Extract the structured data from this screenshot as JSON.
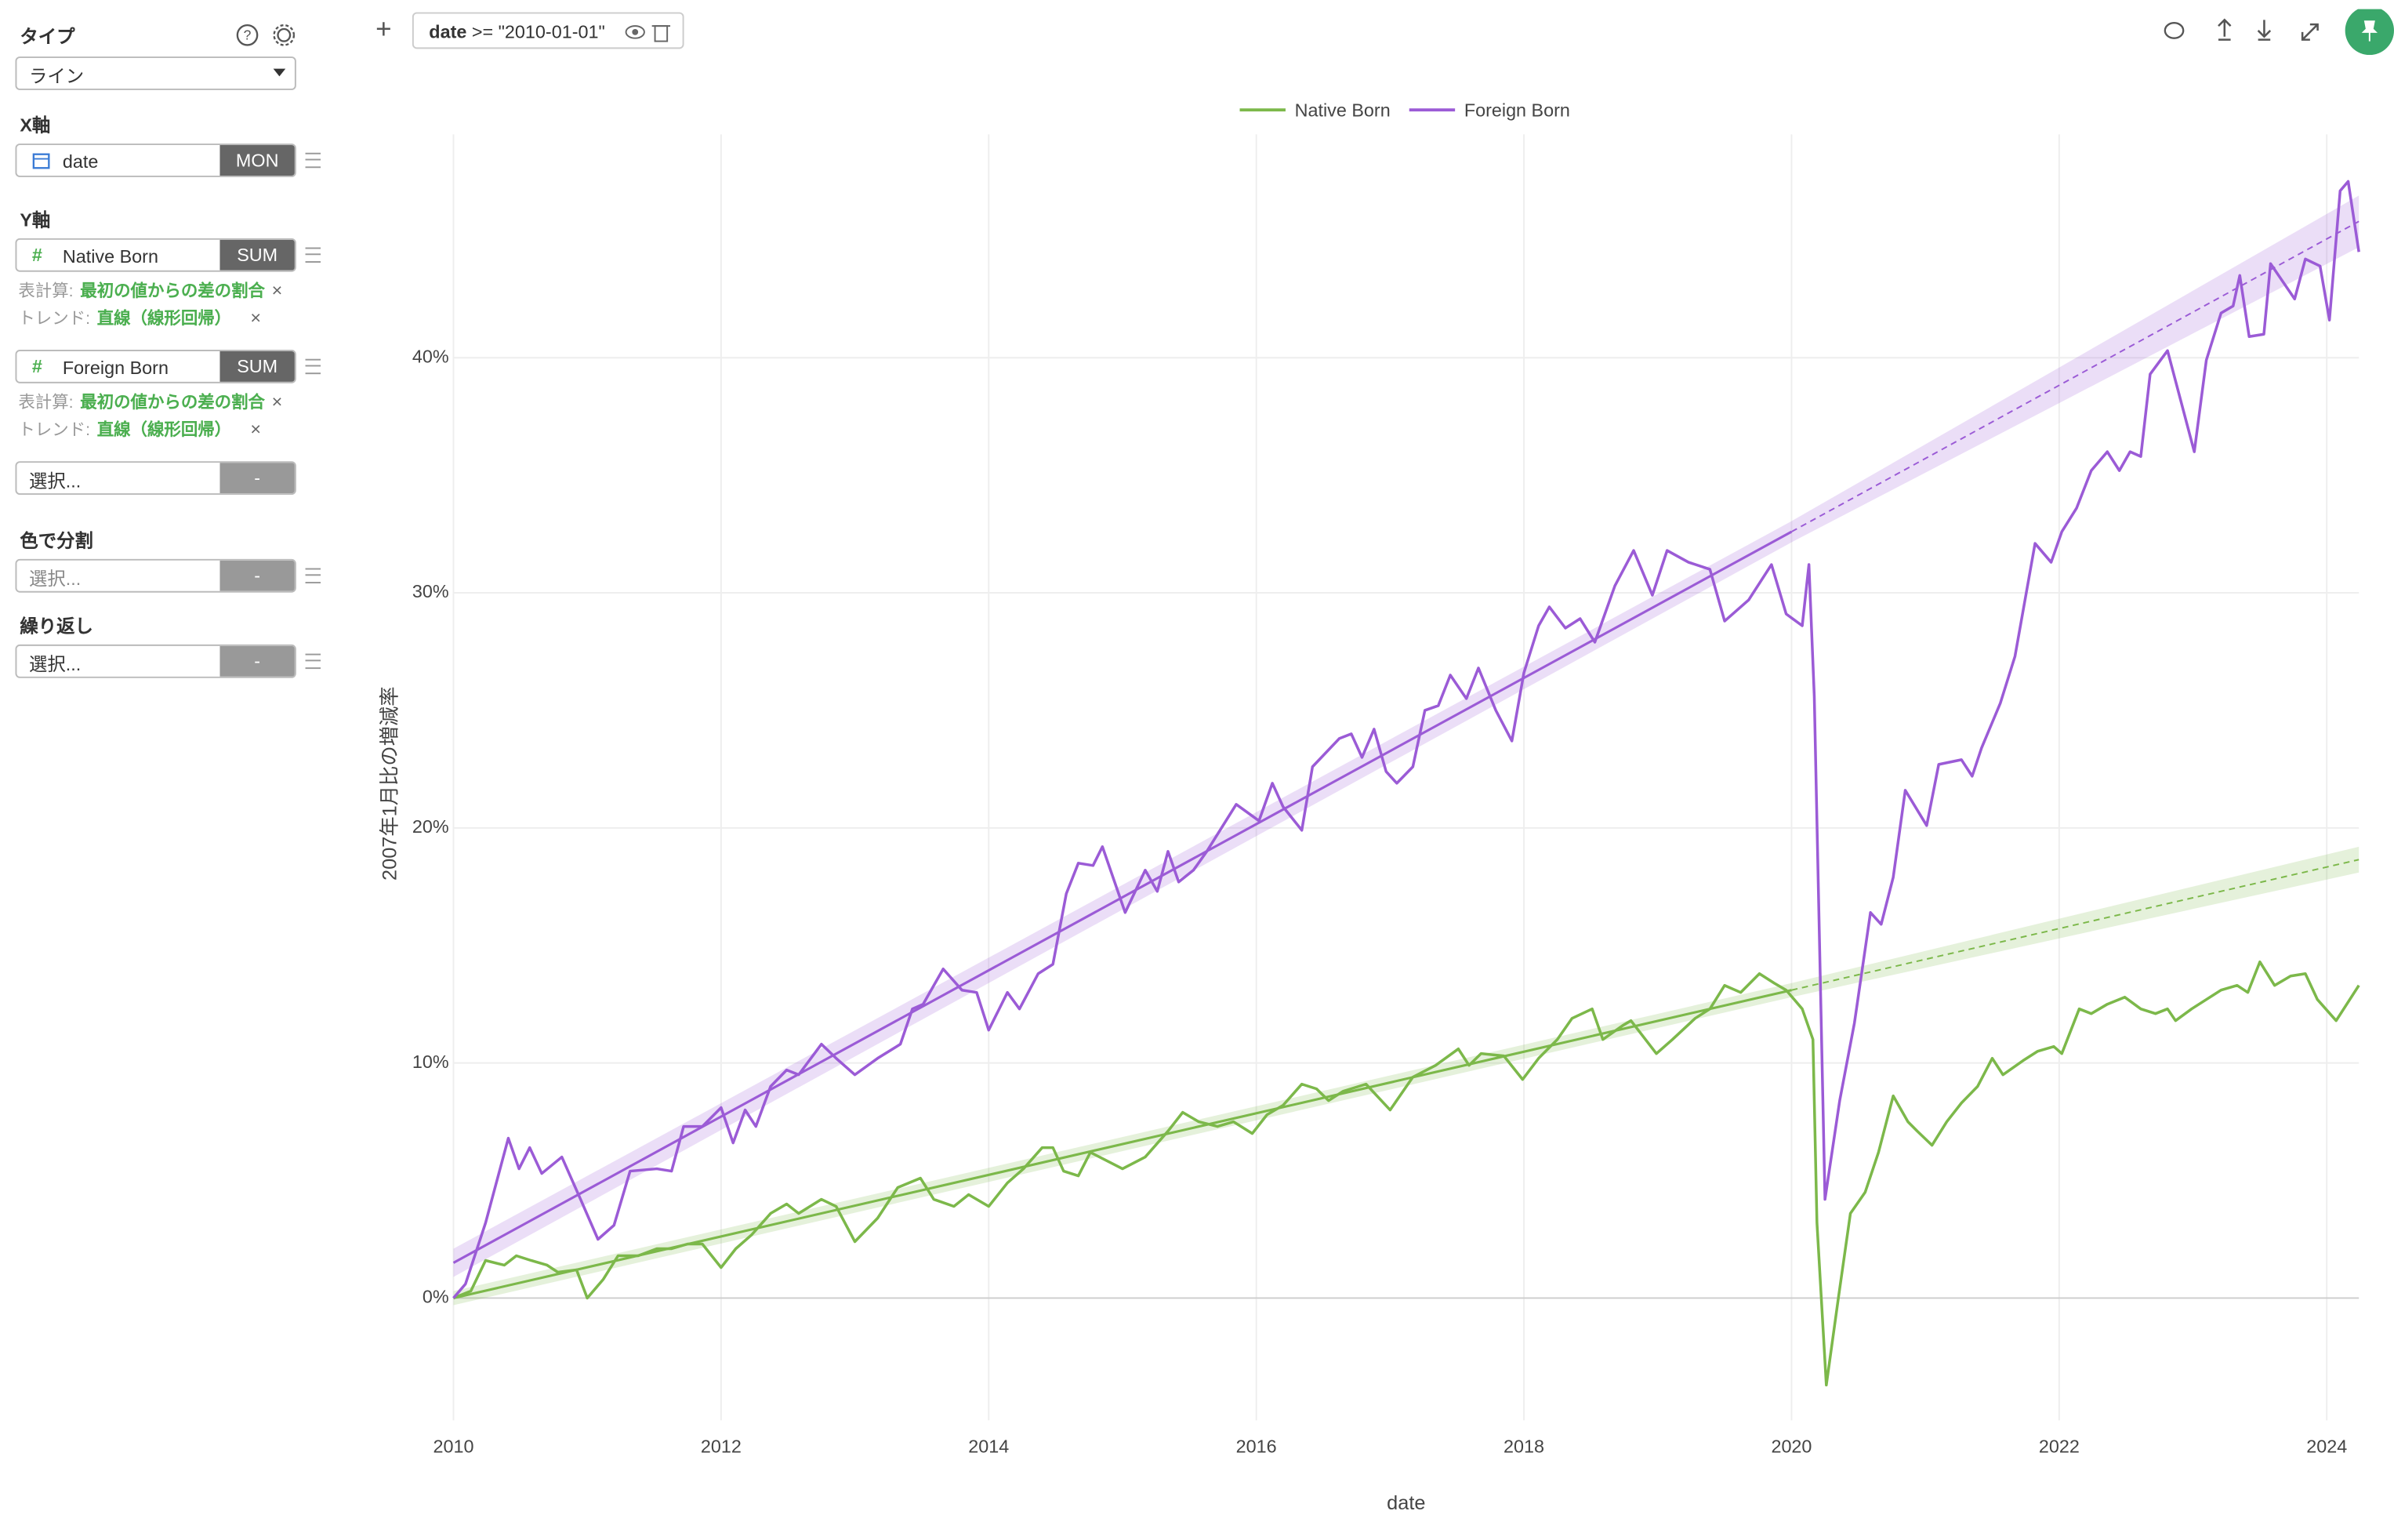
{
  "sidebar": {
    "type_label": "タイプ",
    "type_value": "ライン",
    "x_axis_label": "X軸",
    "x_field": "date",
    "x_agg": "MON",
    "y_axis_label": "Y軸",
    "y_fields": [
      {
        "name": "Native Born",
        "agg": "SUM",
        "calc_label": "表計算:",
        "calc": "最初の値からの差の割合",
        "trend_label": "トレンド:",
        "trend": "直線（線形回帰）"
      },
      {
        "name": "Foreign Born",
        "agg": "SUM",
        "calc_label": "表計算:",
        "calc": "最初の値からの差の割合",
        "trend_label": "トレンド:",
        "trend": "直線（線形回帰）"
      }
    ],
    "extra_select": {
      "placeholder": "選択...",
      "agg": "-"
    },
    "color_label": "色で分割",
    "color_select": {
      "placeholder": "選択...",
      "agg": "-"
    },
    "repeat_label": "繰り返し",
    "repeat_select": {
      "placeholder": "選択...",
      "agg": "-"
    }
  },
  "toolbar": {
    "filter_field": "date",
    "filter_expr": ">= \"2010-01-01\""
  },
  "chart_data": {
    "type": "line",
    "xlabel": "date",
    "ylabel": "2007年1月比の増減率",
    "xlim": [
      2010,
      2024.24
    ],
    "xticks": [
      2010,
      2012,
      2014,
      2016,
      2018,
      2020,
      2022,
      2024
    ],
    "ylim": [
      -5.2,
      49.5
    ],
    "yticks": [
      {
        "value": 0,
        "label": "0%"
      },
      {
        "value": 10,
        "label": "10%"
      },
      {
        "value": 20,
        "label": "20%"
      },
      {
        "value": 30,
        "label": "30%"
      },
      {
        "value": 40,
        "label": "40%"
      }
    ],
    "grid": true,
    "legend": "top",
    "series": [
      {
        "name": "Native Born",
        "color": "#7cb84a",
        "x": [
          2010.0,
          2010.13,
          2010.24,
          2010.38,
          2010.47,
          2010.58,
          2010.7,
          2010.78,
          2010.92,
          2011.0,
          2011.12,
          2011.23,
          2011.38,
          2011.52,
          2011.63,
          2011.75,
          2011.86,
          2012.0,
          2012.11,
          2012.23,
          2012.37,
          2012.49,
          2012.58,
          2012.75,
          2012.86,
          2013.0,
          2013.17,
          2013.32,
          2013.49,
          2013.59,
          2013.74,
          2013.85,
          2014.0,
          2014.14,
          2014.26,
          2014.4,
          2014.48,
          2014.56,
          2014.67,
          2014.76,
          2015.0,
          2015.17,
          2015.34,
          2015.45,
          2015.57,
          2015.71,
          2015.83,
          2015.97,
          2016.08,
          2016.2,
          2016.34,
          2016.45,
          2016.54,
          2016.65,
          2016.82,
          2017.0,
          2017.17,
          2017.34,
          2017.51,
          2017.59,
          2017.68,
          2017.85,
          2017.99,
          2018.11,
          2018.25,
          2018.36,
          2018.51,
          2018.59,
          2018.74,
          2018.8,
          2018.99,
          2019.11,
          2019.28,
          2019.39,
          2019.5,
          2019.62,
          2019.76,
          2019.87,
          2019.96,
          2020.08,
          2020.16,
          2020.19,
          2020.26,
          2020.35,
          2020.44,
          2020.55,
          2020.65,
          2020.76,
          2020.87,
          2020.94,
          2021.05,
          2021.16,
          2021.27,
          2021.39,
          2021.5,
          2021.58,
          2021.73,
          2021.84,
          2021.96,
          2022.02,
          2022.15,
          2022.24,
          2022.36,
          2022.49,
          2022.61,
          2022.72,
          2022.81,
          2022.87,
          2022.99,
          2023.1,
          2023.21,
          2023.33,
          2023.41,
          2023.5,
          2023.61,
          2023.73,
          2023.84,
          2023.93,
          2024.07,
          2024.24
        ],
        "values": [
          0,
          0.3,
          1.6,
          1.4,
          1.8,
          1.6,
          1.4,
          1.1,
          1.2,
          0.0,
          0.8,
          1.8,
          1.8,
          2.1,
          2.1,
          2.3,
          2.3,
          1.3,
          2.1,
          2.7,
          3.6,
          4.0,
          3.6,
          4.2,
          3.9,
          2.4,
          3.4,
          4.7,
          5.1,
          4.2,
          3.9,
          4.4,
          3.9,
          4.9,
          5.5,
          6.4,
          6.4,
          5.4,
          5.2,
          6.2,
          5.5,
          6.0,
          7.1,
          7.9,
          7.5,
          7.3,
          7.5,
          7.0,
          7.8,
          8.2,
          9.1,
          8.9,
          8.4,
          8.8,
          9.1,
          8.0,
          9.4,
          9.9,
          10.6,
          9.9,
          10.4,
          10.3,
          9.3,
          10.2,
          11.0,
          11.9,
          12.3,
          11.0,
          11.6,
          11.8,
          10.4,
          11.0,
          11.9,
          12.3,
          13.3,
          13.0,
          13.8,
          13.4,
          13.1,
          12.3,
          11.0,
          3.2,
          -3.7,
          0.0,
          3.6,
          4.5,
          6.2,
          8.6,
          7.5,
          7.1,
          6.5,
          7.5,
          8.3,
          9.0,
          10.2,
          9.5,
          10.1,
          10.5,
          10.7,
          10.4,
          12.3,
          12.1,
          12.5,
          12.8,
          12.3,
          12.1,
          12.3,
          11.8,
          12.3,
          12.7,
          13.1,
          13.3,
          13.0,
          14.3,
          13.3,
          13.7,
          13.8,
          12.7,
          11.8,
          13.3
        ],
        "trend": {
          "x": [
            2010,
            2020,
            2024.24
          ],
          "values": [
            0,
            13.1,
            18.65
          ],
          "ci": [
            0.3,
            0.3,
            0.55
          ]
        }
      },
      {
        "name": "Foreign Born",
        "color": "#9b5bd6",
        "x": [
          2010.0,
          2010.09,
          2010.24,
          2010.41,
          2010.49,
          2010.57,
          2010.66,
          2010.81,
          2010.95,
          2011.08,
          2011.2,
          2011.32,
          2011.52,
          2011.63,
          2011.72,
          2011.86,
          2012.0,
          2012.09,
          2012.18,
          2012.26,
          2012.37,
          2012.49,
          2012.58,
          2012.75,
          2012.86,
          2013.0,
          2013.17,
          2013.34,
          2013.43,
          2013.51,
          2013.66,
          2013.8,
          2013.91,
          2014.0,
          2014.14,
          2014.23,
          2014.37,
          2014.48,
          2014.58,
          2014.67,
          2014.78,
          2014.85,
          2015.02,
          2015.17,
          2015.26,
          2015.34,
          2015.42,
          2015.53,
          2015.63,
          2015.85,
          2016.02,
          2016.12,
          2016.2,
          2016.34,
          2016.42,
          2016.62,
          2016.71,
          2016.79,
          2016.88,
          2016.97,
          2017.05,
          2017.17,
          2017.26,
          2017.36,
          2017.45,
          2017.57,
          2017.66,
          2017.79,
          2017.91,
          2018.0,
          2018.11,
          2018.19,
          2018.31,
          2018.42,
          2018.53,
          2018.68,
          2018.82,
          2018.96,
          2019.07,
          2019.23,
          2019.39,
          2019.5,
          2019.68,
          2019.85,
          2019.96,
          2020.08,
          2020.13,
          2020.17,
          2020.25,
          2020.36,
          2020.47,
          2020.59,
          2020.67,
          2020.76,
          2020.85,
          2021.01,
          2021.1,
          2021.27,
          2021.35,
          2021.42,
          2021.56,
          2021.67,
          2021.82,
          2021.94,
          2022.02,
          2022.13,
          2022.24,
          2022.36,
          2022.45,
          2022.53,
          2022.61,
          2022.68,
          2022.81,
          2023.01,
          2023.1,
          2023.21,
          2023.3,
          2023.35,
          2023.42,
          2023.53,
          2023.58,
          2023.76,
          2023.84,
          2023.95,
          2024.02,
          2024.1,
          2024.16,
          2024.24
        ],
        "values": [
          0,
          0.6,
          3.2,
          6.8,
          5.5,
          6.4,
          5.3,
          6.0,
          4.2,
          2.5,
          3.1,
          5.4,
          5.5,
          5.4,
          7.3,
          7.3,
          8.1,
          6.6,
          8.0,
          7.3,
          9.0,
          9.7,
          9.5,
          10.8,
          10.2,
          9.5,
          10.2,
          10.8,
          12.3,
          12.5,
          14.0,
          13.1,
          13.0,
          11.4,
          13.0,
          12.3,
          13.8,
          14.2,
          17.2,
          18.5,
          18.4,
          19.2,
          16.4,
          18.2,
          17.3,
          19.0,
          17.7,
          18.2,
          19.0,
          21.0,
          20.3,
          21.9,
          20.9,
          19.9,
          22.6,
          23.8,
          24.0,
          23.0,
          24.2,
          22.4,
          21.9,
          22.6,
          25.0,
          25.2,
          26.5,
          25.5,
          26.8,
          25.0,
          23.7,
          26.6,
          28.6,
          29.4,
          28.5,
          28.9,
          27.9,
          30.3,
          31.8,
          29.9,
          31.8,
          31.3,
          31.0,
          28.8,
          29.7,
          31.2,
          29.1,
          28.6,
          31.2,
          25.6,
          4.2,
          8.4,
          11.7,
          16.4,
          15.9,
          17.9,
          21.6,
          20.1,
          22.7,
          22.9,
          22.2,
          23.4,
          25.3,
          27.3,
          32.1,
          31.3,
          32.6,
          33.6,
          35.2,
          36.0,
          35.2,
          36.0,
          35.8,
          39.3,
          40.3,
          36.0,
          39.9,
          41.9,
          42.2,
          43.5,
          40.9,
          41.0,
          44.0,
          42.5,
          44.2,
          43.9,
          41.6,
          47.1,
          47.5,
          44.5
        ],
        "trend": {
          "x": [
            2010,
            2020,
            2024.24
          ],
          "values": [
            1.5,
            32.6,
            45.8
          ],
          "ci": [
            0.6,
            0.45,
            1.1
          ]
        }
      }
    ]
  }
}
